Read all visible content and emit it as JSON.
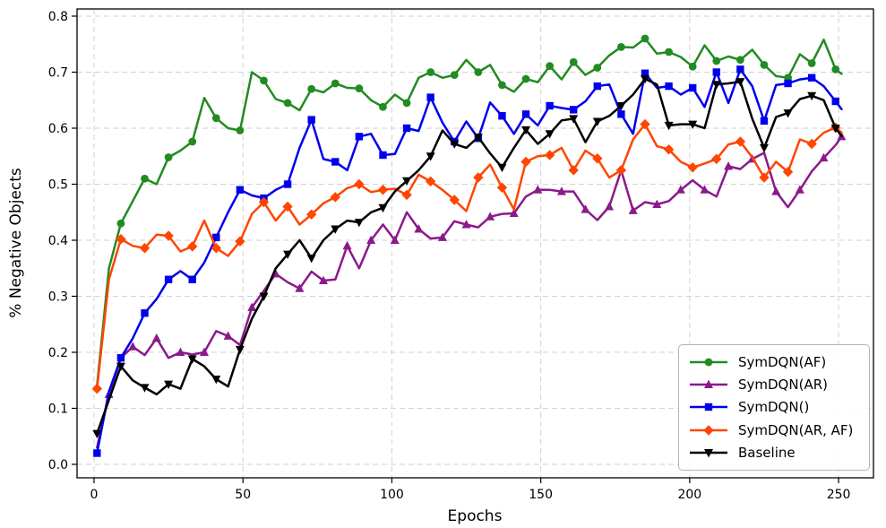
{
  "figure": {
    "background": "#ffffff"
  },
  "chart_data": {
    "type": "line",
    "title": "",
    "xlabel": "Epochs",
    "ylabel": "% Negative Objects",
    "grid": true,
    "legend_position": "lower right",
    "xlim": [
      -5.7,
      261.7
    ],
    "ylim": [
      -0.024,
      0.813
    ],
    "x_ticks": [
      0,
      50,
      100,
      150,
      200,
      250
    ],
    "y_ticks": [
      0.0,
      0.1,
      0.2,
      0.3,
      0.4,
      0.5,
      0.6,
      0.7,
      0.8
    ],
    "x": [
      1,
      5,
      9,
      13,
      17,
      21,
      25,
      29,
      33,
      37,
      41,
      45,
      49,
      53,
      57,
      61,
      65,
      69,
      73,
      77,
      81,
      85,
      89,
      93,
      97,
      101,
      105,
      109,
      113,
      117,
      121,
      125,
      129,
      133,
      137,
      141,
      145,
      149,
      153,
      157,
      161,
      165,
      169,
      173,
      177,
      181,
      185,
      189,
      193,
      197,
      201,
      205,
      209,
      213,
      217,
      221,
      225,
      229,
      233,
      237,
      241,
      245,
      249,
      251
    ],
    "series": [
      {
        "name": "SymDQN(AF)",
        "color": "#228B22",
        "marker": "circle",
        "marker_offset": 2,
        "marker_every": 2,
        "values": [
          0.14,
          0.35,
          0.43,
          0.47,
          0.51,
          0.5,
          0.548,
          0.56,
          0.576,
          0.654,
          0.618,
          0.6,
          0.596,
          0.7,
          0.685,
          0.652,
          0.645,
          0.632,
          0.67,
          0.664,
          0.68,
          0.672,
          0.671,
          0.65,
          0.638,
          0.66,
          0.645,
          0.69,
          0.7,
          0.69,
          0.695,
          0.722,
          0.7,
          0.713,
          0.677,
          0.665,
          0.688,
          0.682,
          0.711,
          0.687,
          0.718,
          0.695,
          0.708,
          0.73,
          0.745,
          0.744,
          0.76,
          0.733,
          0.736,
          0.727,
          0.71,
          0.748,
          0.72,
          0.728,
          0.722,
          0.74,
          0.713,
          0.693,
          0.69,
          0.732,
          0.716,
          0.758,
          0.705,
          0.697
        ]
      },
      {
        "name": "SymDQN(AR)",
        "color": "#8B1A8B",
        "marker": "triangle-up",
        "marker_offset": 1,
        "marker_every": 2,
        "values": [
          0.03,
          0.125,
          0.19,
          0.21,
          0.195,
          0.225,
          0.19,
          0.2,
          0.196,
          0.2,
          0.238,
          0.229,
          0.213,
          0.28,
          0.31,
          0.34,
          0.325,
          0.314,
          0.344,
          0.328,
          0.33,
          0.39,
          0.35,
          0.4,
          0.428,
          0.4,
          0.45,
          0.42,
          0.403,
          0.405,
          0.434,
          0.428,
          0.423,
          0.442,
          0.447,
          0.448,
          0.478,
          0.49,
          0.49,
          0.487,
          0.487,
          0.455,
          0.436,
          0.46,
          0.525,
          0.453,
          0.468,
          0.464,
          0.47,
          0.49,
          0.507,
          0.49,
          0.478,
          0.532,
          0.527,
          0.545,
          0.556,
          0.487,
          0.459,
          0.49,
          0.523,
          0.547,
          0.57,
          0.585
        ]
      },
      {
        "name": "SymDQN()",
        "color": "#0000EE",
        "marker": "square",
        "marker_offset": 0,
        "marker_every": 2,
        "values": [
          0.02,
          0.13,
          0.19,
          0.225,
          0.27,
          0.295,
          0.33,
          0.345,
          0.33,
          0.36,
          0.405,
          0.45,
          0.49,
          0.48,
          0.475,
          0.49,
          0.5,
          0.565,
          0.615,
          0.545,
          0.54,
          0.525,
          0.585,
          0.59,
          0.552,
          0.554,
          0.6,
          0.595,
          0.655,
          0.61,
          0.576,
          0.612,
          0.582,
          0.646,
          0.622,
          0.59,
          0.625,
          0.605,
          0.64,
          0.636,
          0.633,
          0.648,
          0.675,
          0.678,
          0.625,
          0.59,
          0.698,
          0.672,
          0.675,
          0.66,
          0.672,
          0.638,
          0.7,
          0.645,
          0.705,
          0.675,
          0.613,
          0.677,
          0.68,
          0.687,
          0.69,
          0.675,
          0.648,
          0.634
        ]
      },
      {
        "name": "SymDQN(AR, AF)",
        "color": "#FF4500",
        "marker": "diamond",
        "marker_offset": 0,
        "marker_every": 2,
        "values": [
          0.135,
          0.33,
          0.402,
          0.39,
          0.386,
          0.41,
          0.408,
          0.38,
          0.389,
          0.435,
          0.386,
          0.372,
          0.398,
          0.447,
          0.468,
          0.435,
          0.46,
          0.428,
          0.446,
          0.466,
          0.477,
          0.493,
          0.5,
          0.486,
          0.49,
          0.492,
          0.481,
          0.517,
          0.505,
          0.49,
          0.472,
          0.452,
          0.512,
          0.535,
          0.494,
          0.455,
          0.54,
          0.55,
          0.552,
          0.565,
          0.525,
          0.56,
          0.546,
          0.512,
          0.525,
          0.58,
          0.607,
          0.568,
          0.562,
          0.54,
          0.53,
          0.537,
          0.545,
          0.571,
          0.576,
          0.548,
          0.512,
          0.54,
          0.522,
          0.58,
          0.572,
          0.592,
          0.601,
          0.592
        ]
      },
      {
        "name": "Baseline",
        "color": "#000000",
        "marker": "triangle-down",
        "marker_offset": 0,
        "marker_every": 2,
        "values": [
          0.055,
          0.115,
          0.175,
          0.15,
          0.137,
          0.125,
          0.143,
          0.135,
          0.188,
          0.175,
          0.152,
          0.139,
          0.205,
          0.26,
          0.3,
          0.35,
          0.375,
          0.4,
          0.368,
          0.4,
          0.42,
          0.435,
          0.432,
          0.45,
          0.458,
          0.487,
          0.506,
          0.525,
          0.55,
          0.596,
          0.572,
          0.565,
          0.584,
          0.555,
          0.53,
          0.565,
          0.597,
          0.572,
          0.59,
          0.614,
          0.617,
          0.575,
          0.612,
          0.622,
          0.64,
          0.66,
          0.688,
          0.678,
          0.605,
          0.607,
          0.607,
          0.6,
          0.678,
          0.68,
          0.683,
          0.617,
          0.565,
          0.62,
          0.627,
          0.652,
          0.658,
          0.65,
          0.6,
          0.586
        ]
      }
    ]
  }
}
